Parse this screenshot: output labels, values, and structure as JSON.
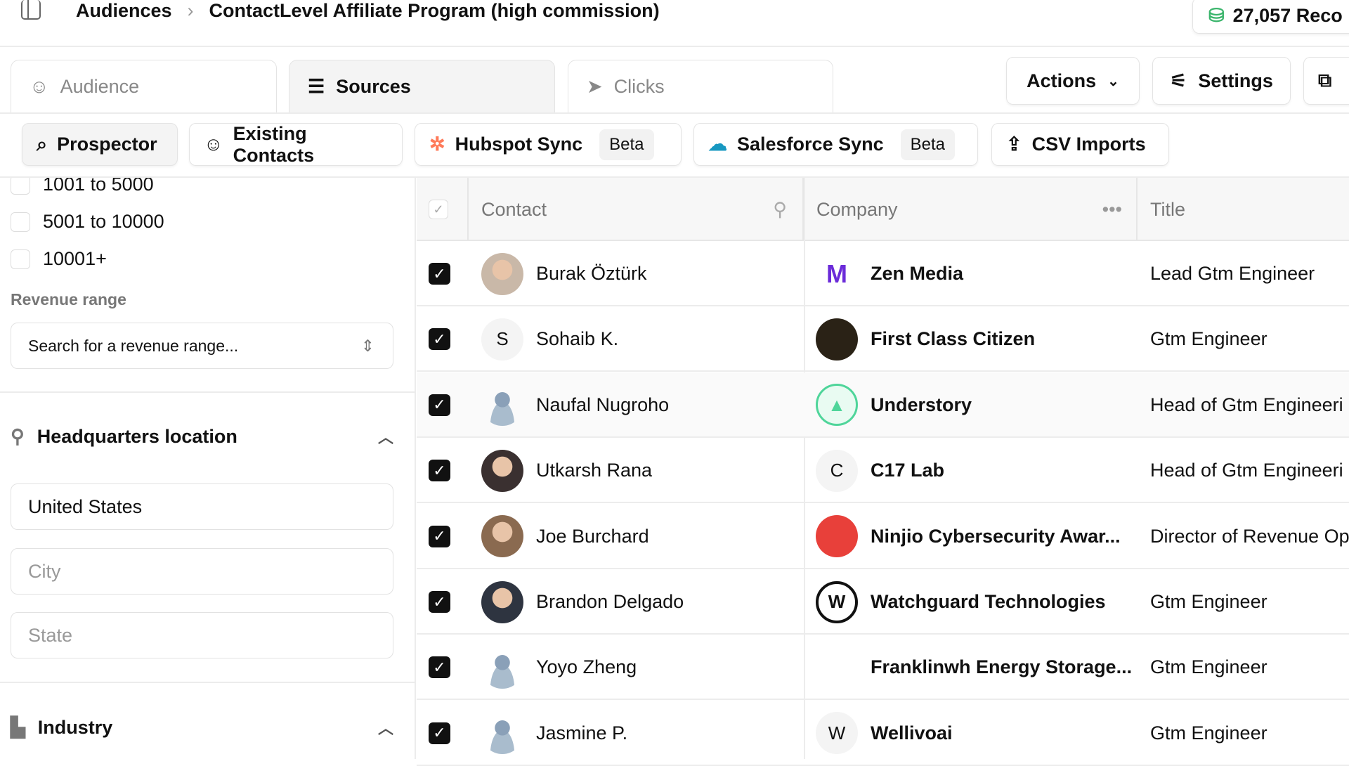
{
  "breadcrumb": {
    "root": "Audiences",
    "separator": "›",
    "current": "ContactLevel Affiliate Program (high commission)"
  },
  "records": "27,057 Reco",
  "tabs": [
    {
      "label": "Audience",
      "icon": "user-icon"
    },
    {
      "label": "Sources",
      "icon": "database-icon",
      "active": true
    },
    {
      "label": "Clicks",
      "icon": "cursor-icon"
    }
  ],
  "toolbar": {
    "actions": "Actions",
    "settings": "Settings"
  },
  "sources": [
    {
      "label": "Prospector",
      "active": true
    },
    {
      "label": "Existing Contacts"
    },
    {
      "label": "Hubspot Sync",
      "badge": "Beta"
    },
    {
      "label": "Salesforce Sync",
      "badge": "Beta"
    },
    {
      "label": "CSV Imports"
    }
  ],
  "filters": {
    "size_options": [
      "1001 to 5000",
      "5001 to 10000",
      "10001+"
    ],
    "revenue_label": "Revenue range",
    "revenue_placeholder": "Search for a revenue range...",
    "hq_title": "Headquarters location",
    "country": "United States",
    "city_placeholder": "City",
    "state_placeholder": "State",
    "industry_title": "Industry"
  },
  "table": {
    "columns": [
      "Contact",
      "Company",
      "Title"
    ],
    "rows": [
      {
        "contact": "Burak Öztürk",
        "avatar": "photo",
        "company": "Zen Media",
        "logo": "M",
        "logo_color": "#6b2bd9",
        "title": "Lead Gtm Engineer"
      },
      {
        "contact": "Sohaib K.",
        "avatar": "S",
        "company": "First Class Citizen",
        "logo": "",
        "logo_color": "#2a2216",
        "title": "Gtm Engineer"
      },
      {
        "contact": "Naufal Nugroho",
        "avatar": "placeholder",
        "company": "Understory",
        "logo": "▲",
        "logo_color": "#4fd59a",
        "title": "Head of Gtm Engineeri"
      },
      {
        "contact": "Utkarsh Rana",
        "avatar": "photo",
        "company": "C17 Lab",
        "logo": "C",
        "logo_color": "#f4f4f4",
        "title": "Head of Gtm Engineeri"
      },
      {
        "contact": "Joe Burchard",
        "avatar": "photo",
        "company": "Ninjio Cybersecurity Awar...",
        "logo": "",
        "logo_color": "#e8403a",
        "title": "Director of Revenue Op"
      },
      {
        "contact": "Brandon Delgado",
        "avatar": "photo",
        "company": "Watchguard Technologies",
        "logo": "W",
        "logo_color": "#ffffff",
        "title": "Gtm Engineer"
      },
      {
        "contact": "Yoyo Zheng",
        "avatar": "placeholder",
        "company": "Franklinwh Energy Storage...",
        "logo": "",
        "logo_color": "#ffffff",
        "title": "Gtm Engineer"
      },
      {
        "contact": "Jasmine P.",
        "avatar": "placeholder",
        "company": "Wellivoai",
        "logo": "W",
        "logo_color": "#f4f4f4",
        "title": "Gtm Engineer"
      }
    ]
  }
}
